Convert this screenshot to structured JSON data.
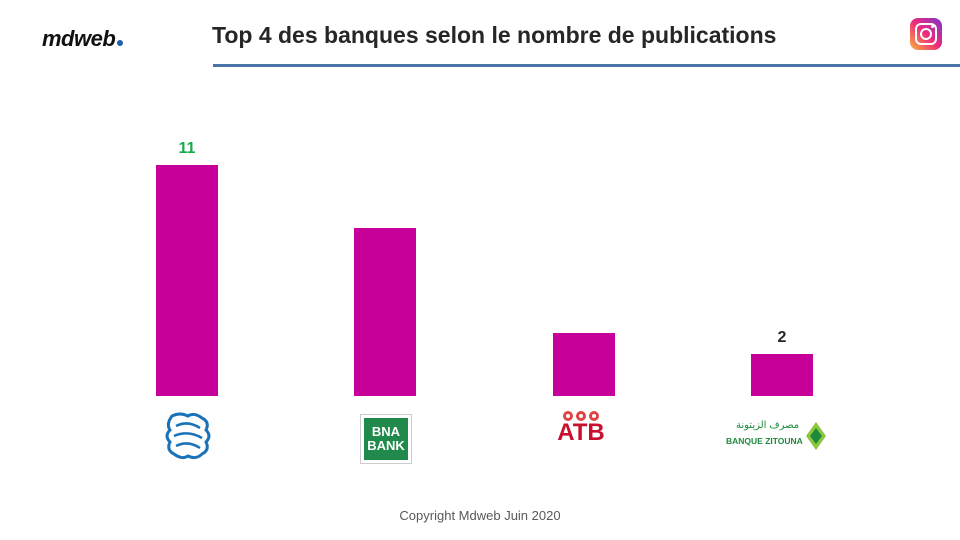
{
  "header": {
    "brand": "mdweb",
    "title": "Top 4 des banques selon le nombre de publications",
    "social_icon": "instagram-icon"
  },
  "footer": {
    "copyright": "Copyright Mdweb  Juin 2020"
  },
  "logos": {
    "bna": [
      "BNA",
      "BANK"
    ],
    "atb": "ATB",
    "zitouna_ar": "مصرف الزيتونة",
    "zitouna_fr": "BANQUE ZITOUNA"
  },
  "colors": {
    "bar": "#c8009a",
    "label_top": "#1aa84a",
    "label_other": "#262626",
    "rule": "#4a74a8"
  },
  "chart_data": {
    "type": "bar",
    "categories": [
      "STB",
      "BNA",
      "ATB",
      "Banque Zitouna"
    ],
    "values": [
      11,
      8,
      3,
      2
    ],
    "data_labels": [
      "11",
      "",
      "",
      "2"
    ],
    "title": "Top 4 des banques selon le nombre de publications",
    "xlabel": "",
    "ylabel": "",
    "ylim": [
      0,
      12
    ],
    "grid": false,
    "legend": false
  }
}
